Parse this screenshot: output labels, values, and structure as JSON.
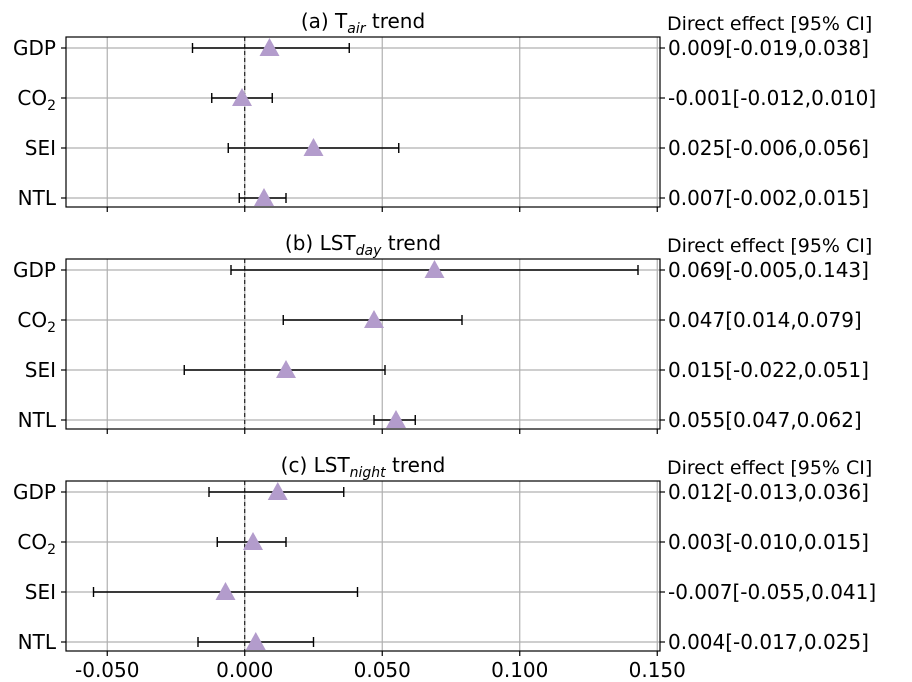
{
  "chart_data": {
    "type": "forest",
    "xlim": [
      -0.065,
      0.151
    ],
    "x_ticks": [
      -0.05,
      0.0,
      0.05,
      0.1,
      0.15
    ],
    "x_tick_labels": [
      "-0.050",
      "0.000",
      "0.050",
      "0.100",
      "0.150"
    ],
    "grid": true,
    "reference_line_x": 0,
    "marker_color": "#b39ccc",
    "categories": [
      "GDP",
      "CO2",
      "SEI",
      "NTL"
    ],
    "category_labels": [
      {
        "text": "GDP",
        "sub": ""
      },
      {
        "text": "CO",
        "sub": "2"
      },
      {
        "text": "SEI",
        "sub": ""
      },
      {
        "text": "NTL",
        "sub": ""
      }
    ],
    "right_header": "Direct effect [95% CI]",
    "panels": [
      {
        "title_prefix": "(a) T",
        "title_sub": "air",
        "title_suffix": " trend",
        "estimates": [
          0.009,
          -0.001,
          0.025,
          0.007
        ],
        "ci_low": [
          -0.019,
          -0.012,
          -0.006,
          -0.002
        ],
        "ci_high": [
          0.038,
          0.01,
          0.056,
          0.015
        ],
        "ci_text": [
          "0.009[-0.019,0.038]",
          "-0.001[-0.012,0.010]",
          "0.025[-0.006,0.056]",
          "0.007[-0.002,0.015]"
        ]
      },
      {
        "title_prefix": "(b) LST",
        "title_sub": "day",
        "title_suffix": " trend",
        "estimates": [
          0.069,
          0.047,
          0.015,
          0.055
        ],
        "ci_low": [
          -0.005,
          0.014,
          -0.022,
          0.047
        ],
        "ci_high": [
          0.143,
          0.079,
          0.051,
          0.062
        ],
        "ci_text": [
          "0.069[-0.005,0.143]",
          "0.047[0.014,0.079]",
          "0.015[-0.022,0.051]",
          "0.055[0.047,0.062]"
        ]
      },
      {
        "title_prefix": "(c) LST",
        "title_sub": "night",
        "title_suffix": " trend",
        "estimates": [
          0.012,
          0.003,
          -0.007,
          0.004
        ],
        "ci_low": [
          -0.013,
          -0.01,
          -0.055,
          -0.017
        ],
        "ci_high": [
          0.036,
          0.015,
          0.041,
          0.025
        ],
        "ci_text": [
          "0.012[-0.013,0.036]",
          "0.003[-0.010,0.015]",
          "-0.007[-0.055,0.041]",
          "0.004[-0.017,0.025]"
        ]
      }
    ]
  }
}
